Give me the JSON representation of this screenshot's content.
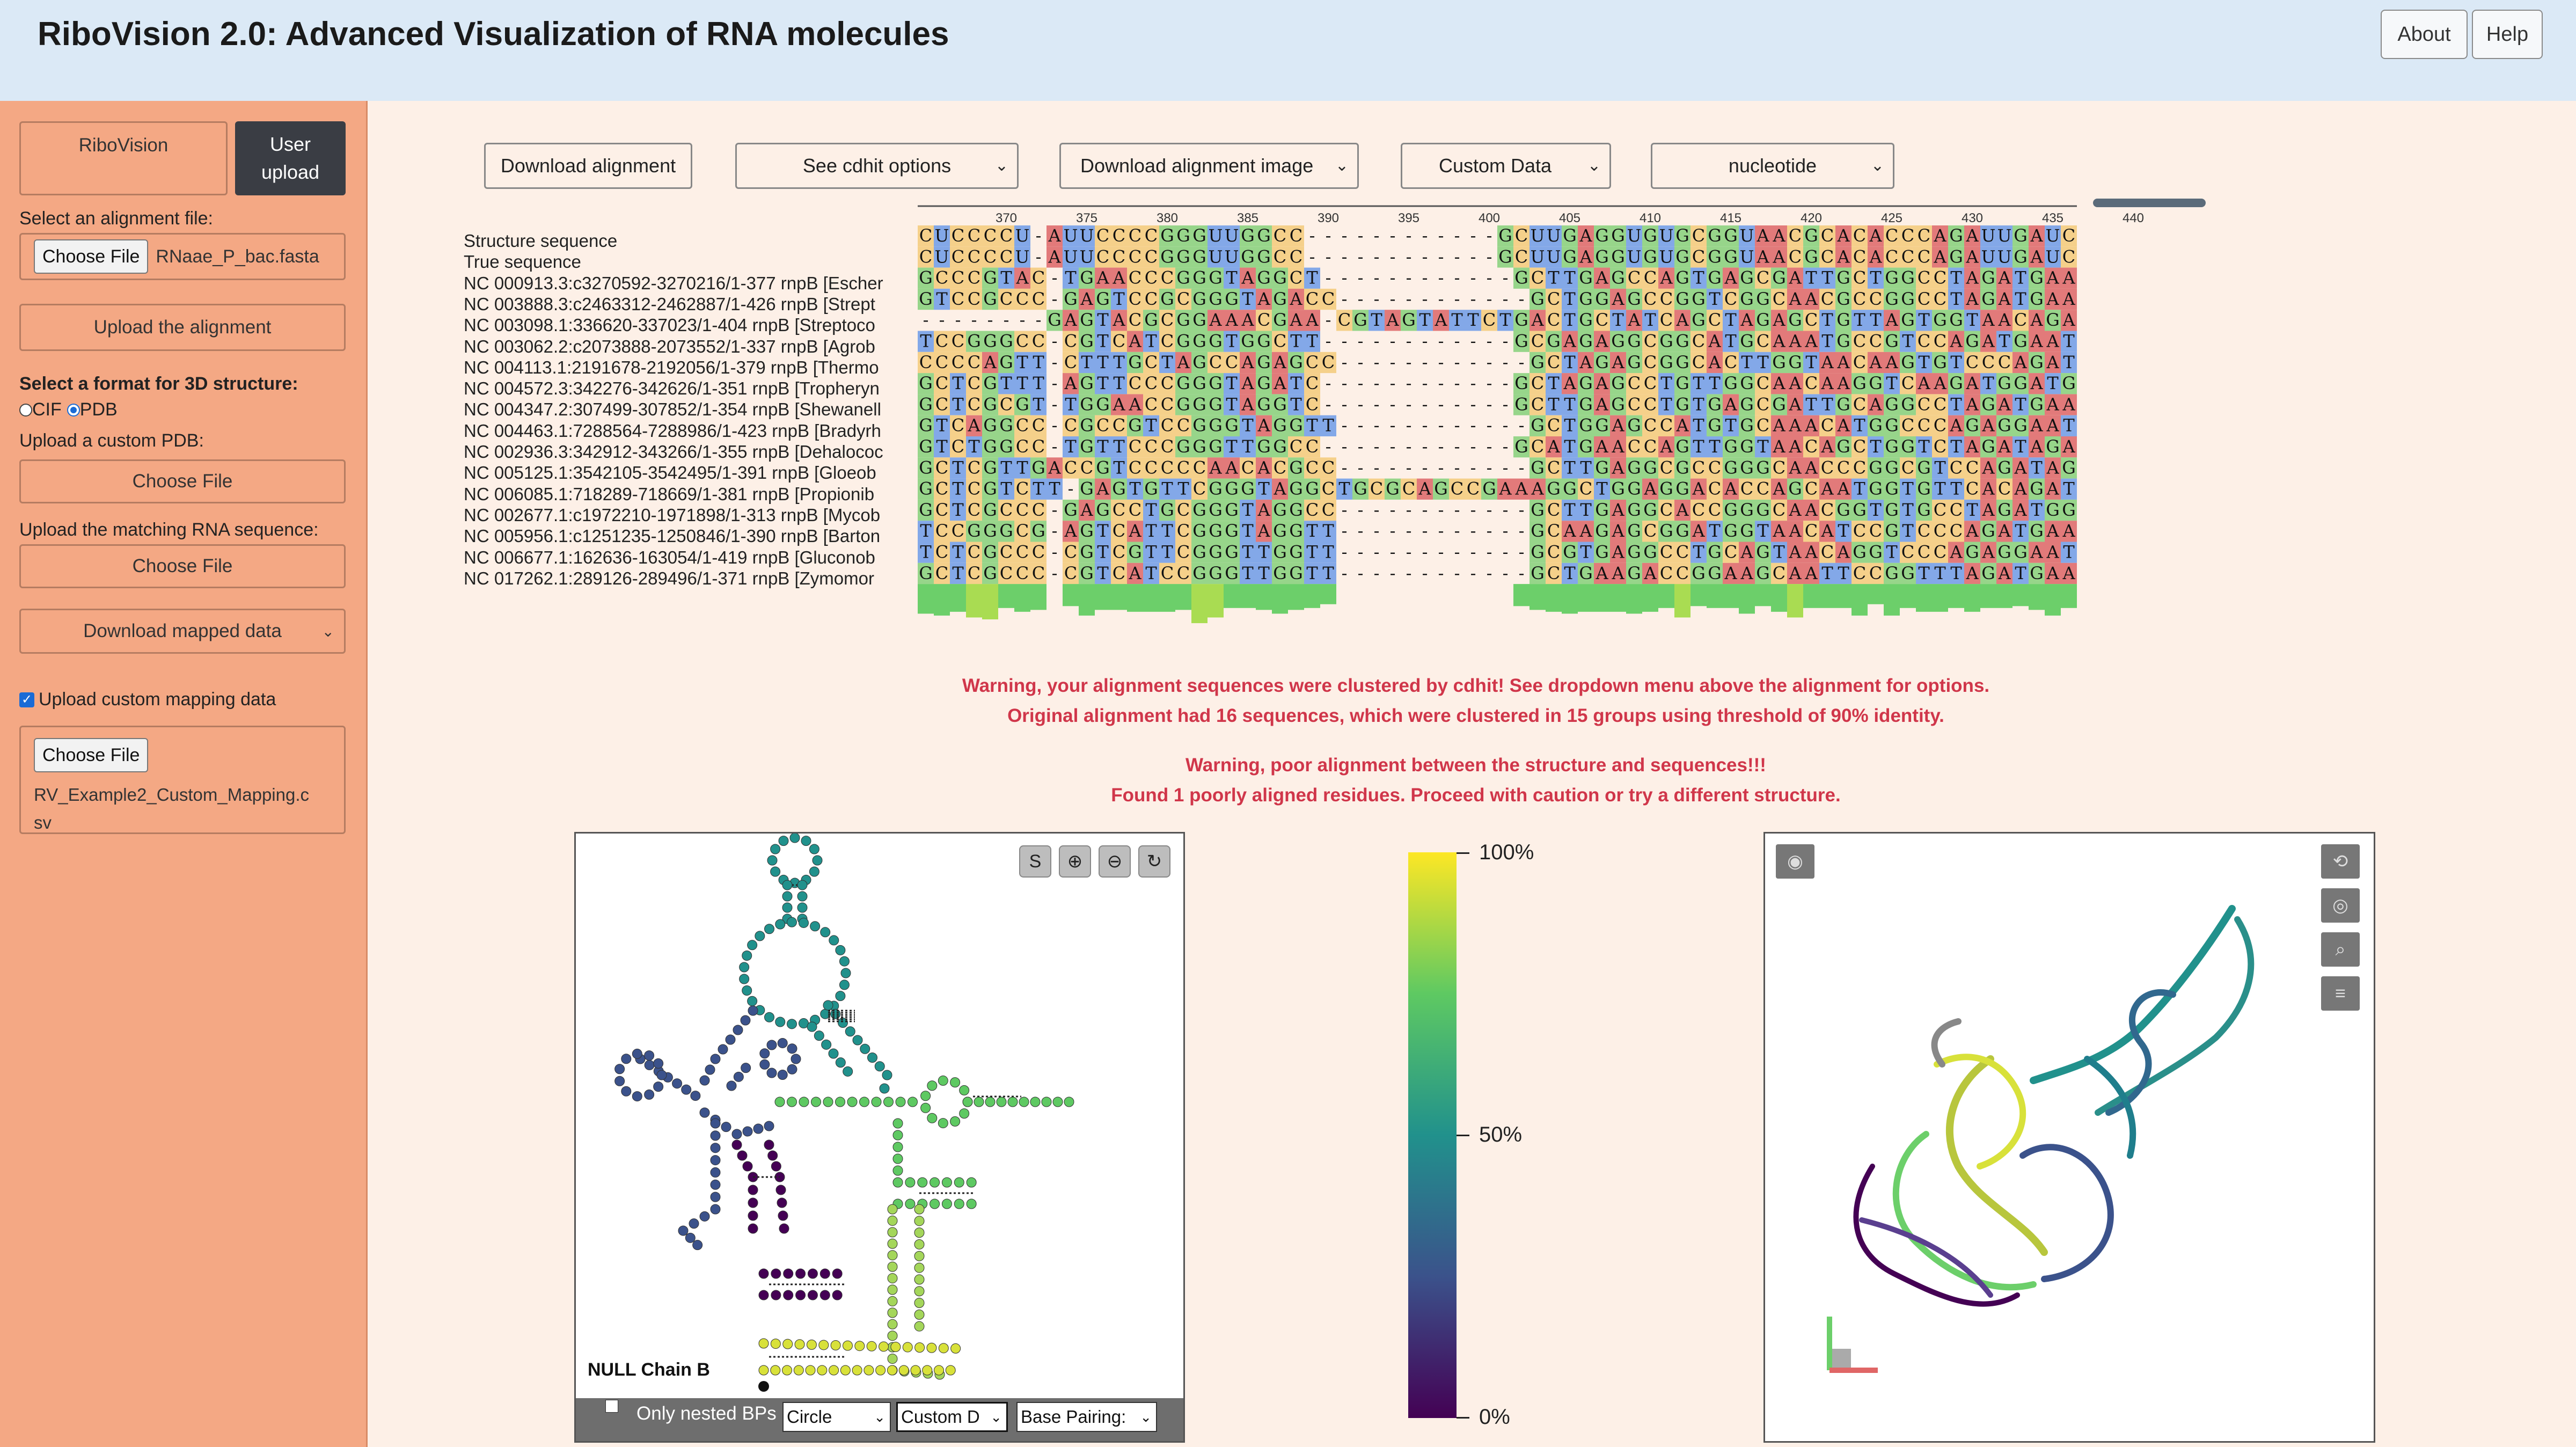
{
  "header": {
    "title": "RiboVision 2.0: Advanced Visualization of RNA molecules",
    "about_label": "About",
    "help_label": "Help"
  },
  "sidebar": {
    "tab_ribovision": "RiboVision",
    "tab_user_line1": "User",
    "tab_user_line2": "upload",
    "select_alignment_label": "Select an alignment file:",
    "choose_file_label": "Choose File",
    "alignment_file_name": "RNaae_P_bac.fasta",
    "upload_alignment_label": "Upload the alignment",
    "format_label": "Select a format for 3D structure:",
    "format_options": [
      "CIF",
      "PDB"
    ],
    "format_selected": "PDB",
    "upload_pdb_label": "Upload a custom PDB:",
    "choose_pdb_label": "Choose File",
    "upload_rna_label": "Upload the matching RNA sequence:",
    "choose_rna_label": "Choose File",
    "download_mapped_label": "Download mapped data",
    "custom_mapping_checkbox_label": "Upload custom mapping data",
    "custom_mapping_checked": true,
    "choose_mapping_label": "Choose File",
    "mapping_file_line1": "RV_Example2_Custom_Mapping.c",
    "mapping_file_line2": "sv"
  },
  "toolbar": {
    "download_alignment": "Download alignment",
    "cdhit_options": "See cdhit options",
    "download_alignment_image": "Download alignment image",
    "custom_data": "Custom Data",
    "nucleotide": "nucleotide"
  },
  "alignment": {
    "ruler_ticks": [
      "370",
      "375",
      "380",
      "385",
      "390",
      "395",
      "400",
      "405",
      "410",
      "415",
      "420",
      "425",
      "430",
      "435",
      "440"
    ],
    "row_names": [
      "Structure sequence",
      "True sequence",
      "NC 000913.3:c3270592-3270216/1-377 rnpB [Escher",
      "NC 003888.3:c2463312-2462887/1-426 rnpB [Strept",
      "NC 003098.1:336620-337023/1-404 rnpB [Streptoco",
      "NC 003062.2:c2073888-2073552/1-337 rnpB [Agrob",
      "NC 004113.1:2191678-2192056/1-379 rnpB [Thermo",
      "NC 004572.3:342276-342626/1-351 rnpB [Tropheryn",
      "NC 004347.2:307499-307852/1-354 rnpB [Shewanell",
      "NC 004463.1:7288564-7288986/1-423 rnpB [Bradyrh",
      "NC 002936.3:342912-343266/1-355 rnpB [Dehalococ",
      "NC 005125.1:3542105-3542495/1-391 rnpB [Gloeob",
      "NC 006085.1:718289-718669/1-381 rnpB [Propionib",
      "NC 002677.1:c1972210-1971898/1-313 rnpB [Mycob",
      "NC 005956.1:c1251235-1250846/1-390 rnpB [Barton",
      "NC 006677.1:162636-163054/1-419 rnpB [Gluconob",
      "NC 017262.1:289126-289496/1-371 rnpB [Zymomor"
    ],
    "sequences": [
      "CUCCCCU-AUUCCCCGGGUUGGCC------------GCUUGAGGUGUGCGGUAACGCACACCCAGAUUGAUC",
      "CUCCCCU-AUUCCCCGGGUUGGCC------------GCUUGAGGUGUGCGGUAACGCACACCCAGAUUGAUC",
      "GCCCGTAC-TGAACCCGGGTAGGCT------------GCTTGAGCCAGTGAGCGATTGCTGGCCTAGATGAATG",
      "GTCCGCCC-GAGTCCGCGGGTAGACC------------GCTGGAGCCGGTCGGCAACGCCGGCCTAGATGAATG",
      "--------GAGTACGCGGAAACGAA-CGTAGTATTCTGACTGCTATCAGCTAGAGCTGTTAGTGGTAACAGATG",
      "TCCGGGCC-CGTCATCGGGTGGCTT------------GCGAGAGGCGGCATGCAAATGCCGTCCAGATGAATC",
      "CCCCAGTT-CTTTGCTAGCCAGAGCC------------GCTAGAGCGGCACTTGGTAACAAGTGTCCCAGATAGAT",
      "GCTCGTTT-AGTTCCCGGGTAGATC------------GCTAGAGCCTGTTGGCAACAAGGTCAAGATGGATG",
      "GCTCGCGT-TGGAACCGGGTAGGTC------------GCTTGAGCCTGTGAGCGATTGCAGGCCTAGATGAATG",
      "GTCAGGCC-CGCCGTCCGGGTAGGTT------------GCTGGAGCCATGTGCAAACATGGCCCAGAGGAATG",
      "GTCTGGCC-TGTTCCCGGGTTGGCC------------GCATGAACCAGTTGGTAACAGCTGGTCTAGATAGAT",
      "GCTCGTTGACCGTCCCCCAACACGCC------------GCTTGAGGCGCCGGGCAACCCGGCGTCCAGATAGAT",
      "GCTCGTCTT-GAGTGTTCGGGTAGGCTGCGCAGCCGAAAGGCTGGAGGACACCAGCAATGGTGTTCACAGATGGATG",
      "GCTCGCCC-GAGCCTGCGGGTAGGCC------------GCTTGAGGCACCGGGCAACGGTGTGCCTAGATGGATG",
      "TCCGGGCG-AGTCATTCGGGTAGGTT------------GCAAGAGCGGATGGTAACATCCGTCCCAGATGAATG",
      "TCTCGCCC-CGTCGTTCGGGTTGGTT------------GCGTGAGGCCTGCAGTAACAGGTCCCAGAGGAATC",
      "GCTCGCCC-CGTCATCCGGGTTGGTT------------GCTGAAGACCGGAAGCAATTCCGGTTTAGATGAATG"
    ],
    "nucleotide_colors": {
      "A": "#e27a7a",
      "C": "#f5d08a",
      "G": "#97d58a",
      "T": "#83a8e8",
      "U": "#83a8e8"
    }
  },
  "warnings": {
    "cdhit_line1": "Warning, your alignment sequences were clustered by cdhit! See dropdown menu above the alignment for options.",
    "cdhit_line2": "Original alignment had 16 sequences, which were clustered in 15 groups using threshold of 90% identity.",
    "poor_line1": "Warning, poor alignment between the structure and sequences!!!",
    "poor_line2": "Found 1 poorly aligned residues. Proceed with caution or try a different structure."
  },
  "panel2d": {
    "chain_label": "NULL Chain B",
    "toolbar_icons": [
      "s-icon",
      "zoom-in-icon",
      "zoom-out-icon",
      "reset-icon"
    ],
    "nested_bps_label": "Only nested BPs",
    "shape_select": "Circle",
    "data_select": "Custom D",
    "bp_select": "Base Pairing:"
  },
  "colorbar": {
    "top_label": "100%",
    "mid_label": "50%",
    "bottom_label": "0%",
    "stops": [
      "#fde725",
      "#5ec962",
      "#21918c",
      "#3b528b",
      "#440154"
    ]
  },
  "panel3d": {
    "toolbar_icons": [
      "rotate-icon",
      "target-icon",
      "search-icon",
      "layers-icon"
    ],
    "corner_icon": "camera-icon"
  }
}
